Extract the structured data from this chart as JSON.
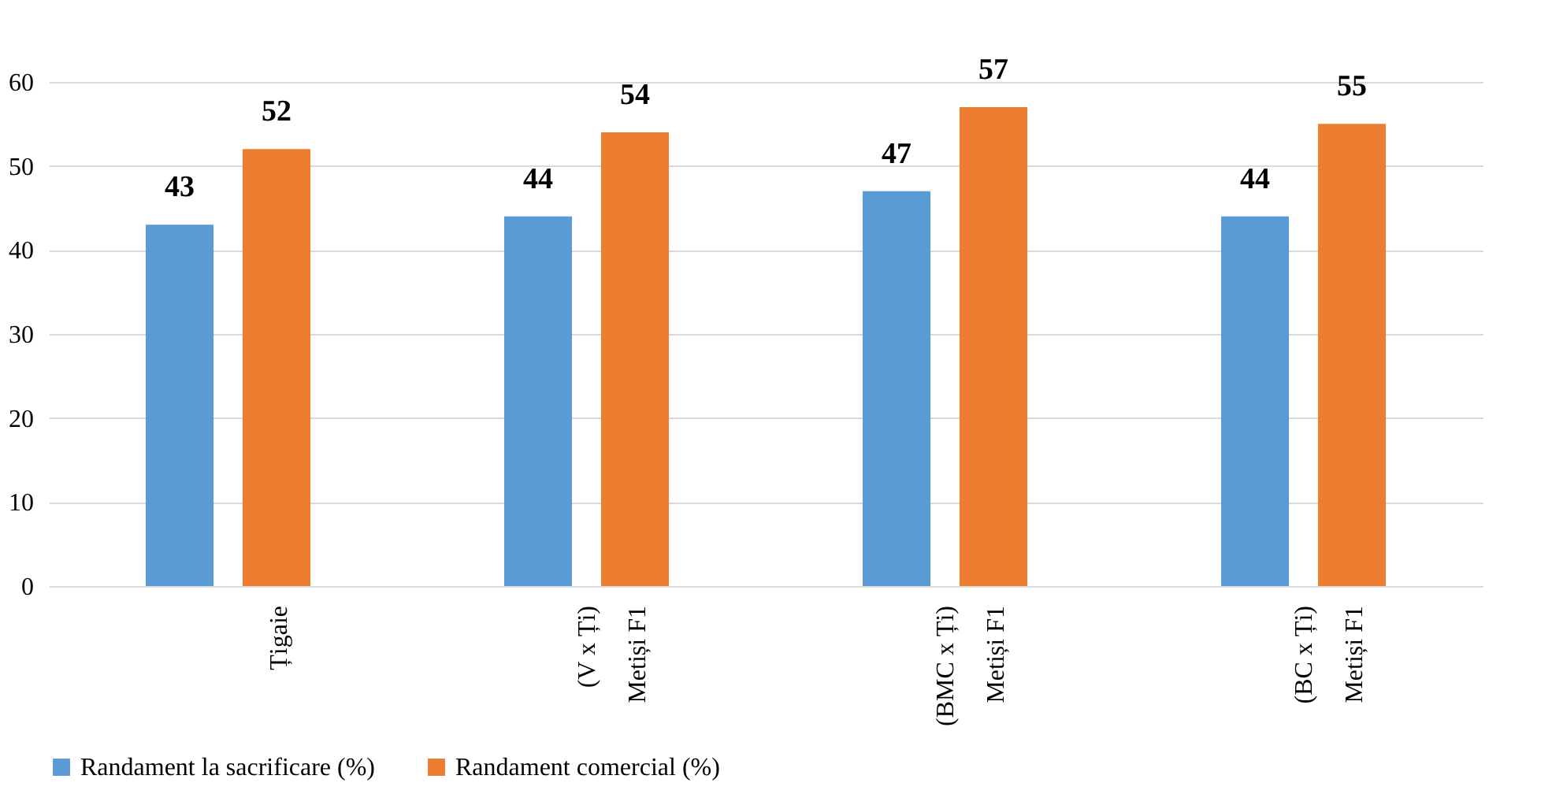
{
  "chart_data": {
    "type": "bar",
    "categories": [
      "Țigaie",
      "(V x Ți)\nMetiși F1",
      "(BMC x Ți)\nMetiși F1",
      "(BC x Ți)\nMetiși F1"
    ],
    "series": [
      {
        "name": "Randament la sacrificare (%)",
        "color": "#5b9bd5",
        "values": [
          43,
          44,
          47,
          44
        ]
      },
      {
        "name": "Randament comercial (%)",
        "color": "#ed7d31",
        "values": [
          52,
          54,
          57,
          55
        ]
      }
    ],
    "ylim": [
      0,
      60
    ],
    "yticks": [
      0,
      10,
      20,
      30,
      40,
      50,
      60
    ],
    "grid": "y",
    "legend": "bottom",
    "data_labels": true
  }
}
